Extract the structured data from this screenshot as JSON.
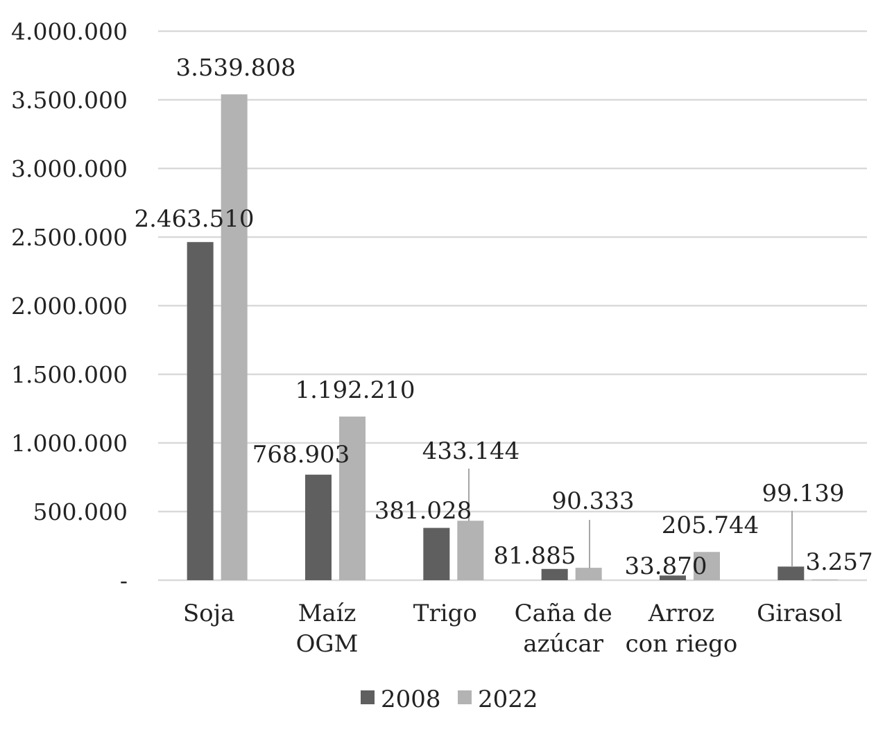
{
  "chart_data": {
    "type": "bar",
    "categories": [
      [
        "Soja"
      ],
      [
        "Maíz",
        "OGM"
      ],
      [
        "Trigo"
      ],
      [
        "Caña de",
        "azúcar"
      ],
      [
        "Arroz",
        "con riego"
      ],
      [
        "Girasol"
      ]
    ],
    "series": [
      {
        "name": "2008",
        "color": "#5f5f5f",
        "values": [
          2463510,
          768903,
          381028,
          81885,
          33870,
          99139
        ],
        "labels": [
          "2.463.510",
          "768.903",
          "381.028",
          "81.885",
          "33.870",
          "99.139"
        ]
      },
      {
        "name": "2022",
        "color": "#b3b3b3",
        "values": [
          3539808,
          1192210,
          433144,
          90333,
          205744,
          3257
        ],
        "labels": [
          "3.539.808",
          "1.192.210",
          "433.144",
          "90.333",
          "205.744",
          "3.257"
        ]
      }
    ],
    "y_ticks": [
      0,
      500000,
      1000000,
      1500000,
      2000000,
      2500000,
      3000000,
      3500000,
      4000000
    ],
    "y_tick_labels": [
      "-",
      "500.000",
      "1.000.000",
      "1.500.000",
      "2.000.000",
      "2.500.000",
      "3.000.000",
      "3.500.000",
      "4.000.000"
    ],
    "ylim": [
      0,
      4000000
    ],
    "grid": true,
    "legend_position": "bottom",
    "title": "",
    "xlabel": "",
    "ylabel": ""
  }
}
